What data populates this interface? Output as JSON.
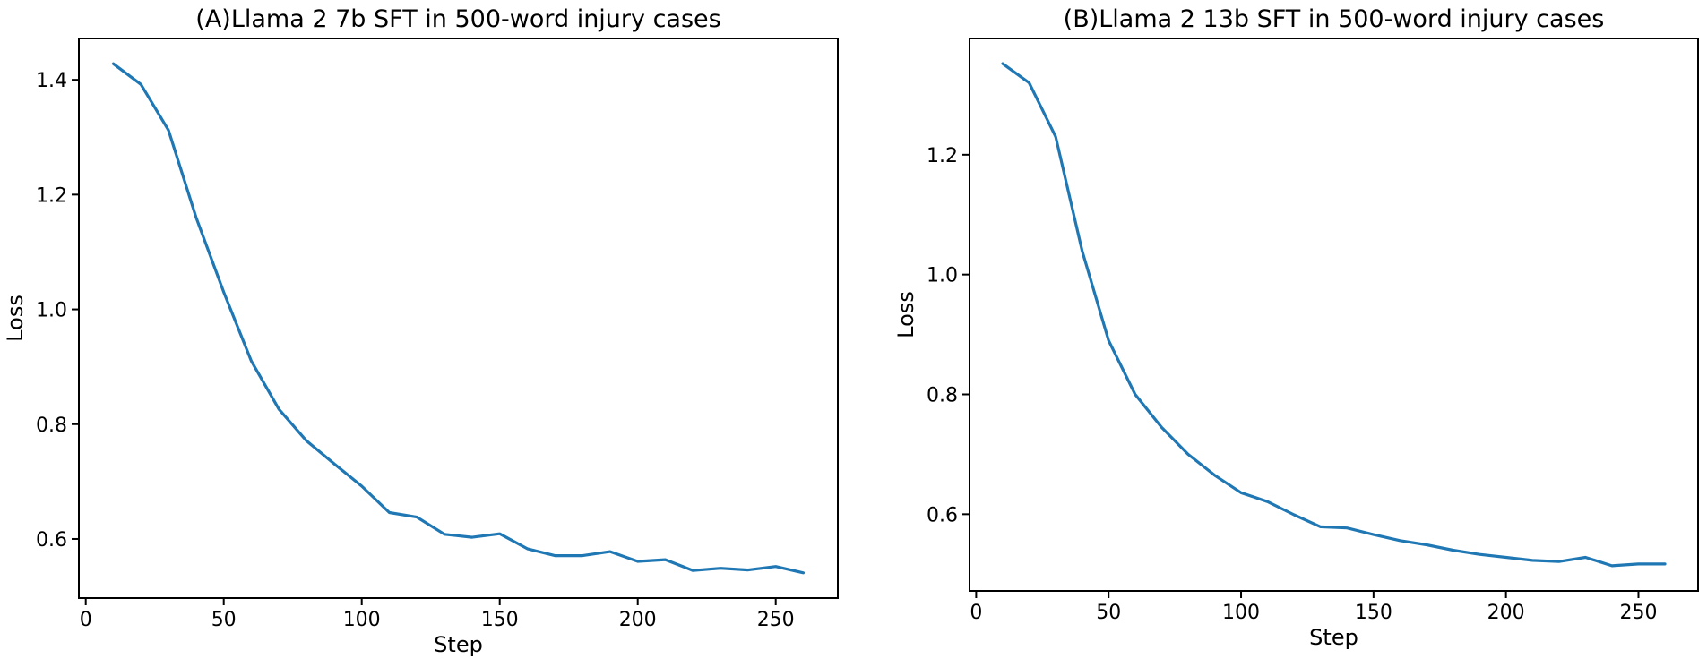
{
  "figure": {
    "background_color": "#ffffff",
    "text_color": "#000000"
  },
  "chart_data": [
    {
      "id": "A",
      "type": "line",
      "title": "(A)Llama 2 7b SFT in 500-word injury cases",
      "xlabel": "Step",
      "ylabel": "Loss",
      "line_color": "#1f77b4",
      "grid": false,
      "legend_position": "none",
      "x": [
        10,
        20,
        30,
        40,
        50,
        60,
        70,
        80,
        90,
        100,
        110,
        120,
        130,
        140,
        150,
        160,
        170,
        180,
        190,
        200,
        210,
        220,
        230,
        240,
        250,
        260
      ],
      "y": [
        1.428,
        1.392,
        1.312,
        1.16,
        1.03,
        0.91,
        0.826,
        0.771,
        0.731,
        0.692,
        0.646,
        0.638,
        0.608,
        0.603,
        0.609,
        0.583,
        0.571,
        0.571,
        0.578,
        0.561,
        0.564,
        0.545,
        0.549,
        0.546,
        0.552,
        0.541
      ],
      "xticks": [
        0,
        50,
        100,
        150,
        200,
        250
      ],
      "xtick_labels": [
        "0",
        "50",
        "100",
        "150",
        "200",
        "250"
      ],
      "yticks": [
        0.6,
        0.8,
        1.0,
        1.2,
        1.4
      ],
      "ytick_labels": [
        "0.6",
        "0.8",
        "1.0",
        "1.2",
        "1.4"
      ],
      "xlim": [
        -2.5,
        272.5
      ],
      "ylim": [
        0.497,
        1.472
      ]
    },
    {
      "id": "B",
      "type": "line",
      "title": "(B)Llama 2 13b SFT in 500-word injury cases",
      "xlabel": "Step",
      "ylabel": "Loss",
      "line_color": "#1f77b4",
      "grid": false,
      "legend_position": "none",
      "x": [
        10,
        20,
        30,
        40,
        50,
        60,
        70,
        80,
        90,
        100,
        110,
        120,
        130,
        140,
        150,
        160,
        170,
        180,
        190,
        200,
        210,
        220,
        230,
        240,
        250,
        260
      ],
      "y": [
        1.352,
        1.32,
        1.23,
        1.04,
        0.89,
        0.8,
        0.745,
        0.7,
        0.665,
        0.636,
        0.621,
        0.599,
        0.579,
        0.577,
        0.566,
        0.556,
        0.549,
        0.54,
        0.533,
        0.528,
        0.523,
        0.521,
        0.528,
        0.514,
        0.517,
        0.517
      ],
      "xticks": [
        0,
        50,
        100,
        150,
        200,
        250
      ],
      "xtick_labels": [
        "0",
        "50",
        "100",
        "150",
        "200",
        "250"
      ],
      "yticks": [
        0.6,
        0.8,
        1.0,
        1.2
      ],
      "ytick_labels": [
        "0.6",
        "0.8",
        "1.0",
        "1.2"
      ],
      "xlim": [
        -2.5,
        272.5
      ],
      "ylim": [
        0.472,
        1.394
      ]
    }
  ]
}
